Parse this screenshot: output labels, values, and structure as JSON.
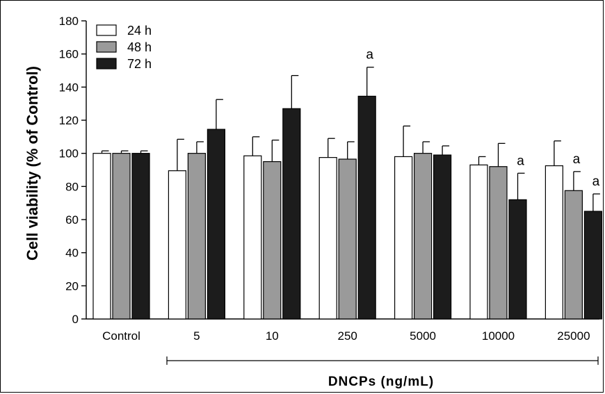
{
  "chart_data": {
    "type": "bar",
    "ylabel": "Cell viability (% of Control)",
    "xlabel": "DNCPs (ng/mL)",
    "ylim": [
      0,
      180
    ],
    "yticks": [
      0,
      20,
      40,
      60,
      80,
      100,
      120,
      140,
      160,
      180
    ],
    "categories": [
      "Control",
      "5",
      "10",
      "250",
      "5000",
      "10000",
      "25000"
    ],
    "series": [
      {
        "name": "24 h",
        "color": "#ffffff",
        "values": [
          100,
          89.5,
          98.5,
          97.5,
          98,
          93,
          92.5
        ],
        "errors": [
          1.5,
          19,
          11.5,
          11.5,
          18.5,
          5,
          15
        ],
        "annotations": [
          "",
          "",
          "",
          "",
          "",
          "",
          ""
        ]
      },
      {
        "name": "48 h",
        "color": "#9a9a9a",
        "values": [
          100,
          100,
          95,
          96.5,
          100,
          92,
          77.5
        ],
        "errors": [
          1.5,
          7,
          13,
          10.5,
          7,
          14,
          11.5
        ],
        "annotations": [
          "",
          "",
          "",
          "",
          "",
          "",
          "a"
        ]
      },
      {
        "name": "72 h",
        "color": "#1c1c1c",
        "values": [
          100,
          114.5,
          127,
          134.5,
          99,
          72,
          65
        ],
        "errors": [
          1.5,
          18,
          20,
          17.5,
          5.5,
          16,
          10.5
        ],
        "annotations": [
          "",
          "",
          "",
          "a",
          "",
          "a",
          "a"
        ]
      }
    ],
    "legend_position": "top-left",
    "grid": false
  }
}
